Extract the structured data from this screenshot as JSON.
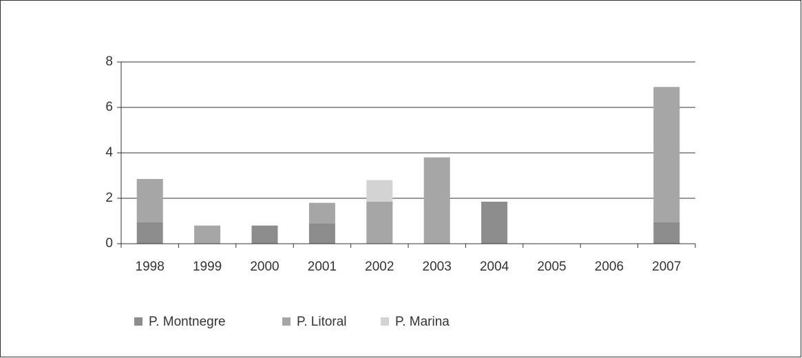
{
  "chart_data": {
    "type": "stacked_bar",
    "categories": [
      "1998",
      "1999",
      "2000",
      "2001",
      "2002",
      "2003",
      "2004",
      "2005",
      "2006",
      "2007"
    ],
    "series": [
      {
        "name": "P. Montnegre",
        "color": "#8c8c8c",
        "values": [
          0.95,
          0,
          0.8,
          0.9,
          0,
          0,
          1.85,
          0,
          0,
          0.95
        ]
      },
      {
        "name": "P. Litoral",
        "color": "#a6a6a6",
        "values": [
          1.9,
          0.8,
          0,
          0.9,
          1.85,
          3.8,
          0,
          0,
          0,
          5.95
        ]
      },
      {
        "name": "P. Marina",
        "color": "#d3d3d3",
        "values": [
          0,
          0,
          0,
          0,
          0.95,
          0,
          0,
          0,
          0,
          0
        ]
      }
    ],
    "ylim": [
      0,
      8
    ],
    "yticks": [
      0,
      2,
      4,
      6,
      8
    ],
    "grid": true,
    "legend": "bottom"
  }
}
